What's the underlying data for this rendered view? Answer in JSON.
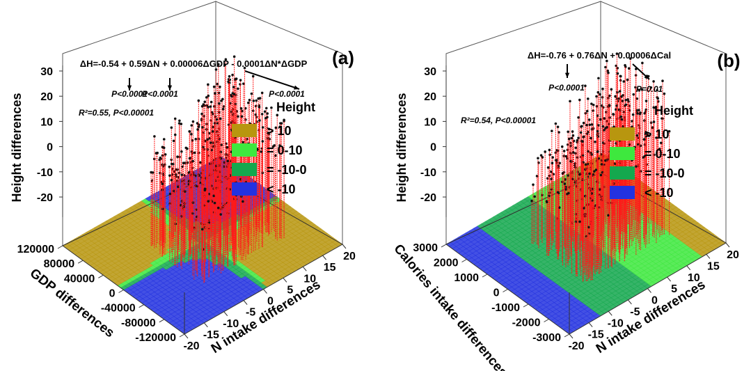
{
  "chart_data": [
    {
      "panel": "(a)",
      "type": "scatter",
      "mode": "3d-scatter-with-drop-lines",
      "title": "",
      "xlabel": "N intake differences",
      "ylabel": "GDP differences",
      "zlabel": "Height differences",
      "x_ticks": [
        "-20",
        "-15",
        "-10",
        "-5",
        "0",
        "5",
        "10",
        "15",
        "20"
      ],
      "y_ticks": [
        "-120000",
        "-80000",
        "-40000",
        "0",
        "40000",
        "80000",
        "120000"
      ],
      "z_ticks": [
        "-20",
        "-10",
        "0",
        "10",
        "20",
        "30"
      ],
      "xlim": [
        -20,
        20
      ],
      "ylim": [
        -120000,
        120000
      ],
      "zlim": [
        -28,
        30
      ],
      "formula": "ΔH=-0.54 + 0.59ΔN + 0.00006ΔGDP - 0.0001ΔN*ΔGDP",
      "pvalues": [
        "P<0.0001",
        "P<0.0001",
        "P<0.0001"
      ],
      "fit": "R²=0.55, P<0.00001",
      "coef": {
        "intercept": -0.54,
        "n": 0.59,
        "other": 6e-05,
        "interaction": -0.0001
      },
      "legend": {
        "title": "Height",
        "entries": [
          {
            "label": "> 10",
            "color": "#b8960f"
          },
          {
            "label": "= 0-10",
            "color": "#3ee83e"
          },
          {
            "label": "= -10-0",
            "color": "#14a84e"
          },
          {
            "label": "< -10",
            "color": "#2332e0"
          }
        ]
      },
      "point_color": "#111111",
      "dropline_color": "#ff1a1a",
      "points_note": "dense cloud of several hundred observations concentrated at N intake differences -8 to 15, height differences -25 to 30"
    },
    {
      "panel": "(b)",
      "type": "scatter",
      "mode": "3d-scatter-with-drop-lines",
      "title": "",
      "xlabel": "N intake differences",
      "ylabel": "Calories intake differences",
      "zlabel": "Height differences",
      "x_ticks": [
        "-20",
        "-15",
        "-10",
        "-5",
        "0",
        "5",
        "10",
        "15",
        "20"
      ],
      "y_ticks": [
        "-3000",
        "-2000",
        "-1000",
        "0",
        "1000",
        "2000",
        "3000"
      ],
      "z_ticks": [
        "-20",
        "-10",
        "0",
        "10",
        "20",
        "30"
      ],
      "xlim": [
        -20,
        20
      ],
      "ylim": [
        -3000,
        3000
      ],
      "zlim": [
        -28,
        30
      ],
      "formula": "ΔH=-0.76 + 0.76ΔN + 0.00006ΔCal",
      "pvalues": [
        "P<0.0001",
        "P=0.01"
      ],
      "fit": "R²=0.54, P<0.00001",
      "coef": {
        "intercept": -0.76,
        "n": 0.76,
        "other": 6e-05,
        "interaction": 0
      },
      "legend": {
        "title": "Height",
        "entries": [
          {
            "label": "> 10",
            "color": "#b8960f"
          },
          {
            "label": "= 0-10",
            "color": "#3ee83e"
          },
          {
            "label": "= -10-0",
            "color": "#14a84e"
          },
          {
            "label": "< -10",
            "color": "#2332e0"
          }
        ]
      },
      "point_color": "#111111",
      "dropline_color": "#ff1a1a",
      "points_note": "dense cloud of several hundred observations concentrated at N intake differences -8 to 15, height differences -25 to 30"
    }
  ]
}
